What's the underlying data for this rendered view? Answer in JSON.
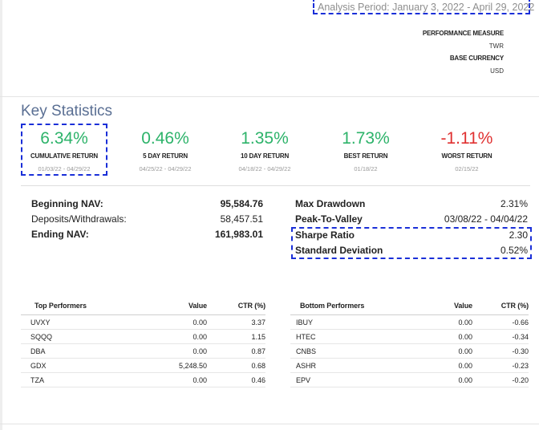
{
  "analysis_period": "Analysis Period: January 3, 2022 - April 29, 2022",
  "meta": {
    "performance_measure_label": "PERFORMANCE MEASURE",
    "performance_measure_value": "TWR",
    "base_currency_label": "BASE CURRENCY",
    "base_currency_value": "USD"
  },
  "key_statistics": {
    "title": "Key Statistics",
    "stats": [
      {
        "value": "6.34%",
        "label": "CUMULATIVE RETURN",
        "dates": "01/03/22 - 04/29/22"
      },
      {
        "value": "0.46%",
        "label": "5 DAY RETURN",
        "dates": "04/25/22 - 04/29/22"
      },
      {
        "value": "1.35%",
        "label": "10 DAY RETURN",
        "dates": "04/18/22 - 04/29/22"
      },
      {
        "value": "1.73%",
        "label": "BEST RETURN",
        "dates": "01/18/22"
      },
      {
        "value": "-1.11%",
        "label": "WORST RETURN",
        "dates": "02/15/22"
      }
    ]
  },
  "nav": [
    {
      "label": "Beginning NAV:",
      "value": "95,584.76"
    },
    {
      "label": "Deposits/Withdrawals:",
      "value": "58,457.51"
    },
    {
      "label": "Ending NAV:",
      "value": "161,983.01"
    }
  ],
  "risk": [
    {
      "label": "Max Drawdown",
      "value": "2.31%"
    },
    {
      "label": "Peak-To-Valley",
      "value": "03/08/22 - 04/04/22"
    },
    {
      "label": "Sharpe Ratio",
      "value": "2.30"
    },
    {
      "label": "Standard Deviation",
      "value": "0.52%"
    }
  ],
  "top_performers": {
    "headers": [
      "Top Performers",
      "Value",
      "CTR (%)"
    ],
    "rows": [
      [
        "UVXY",
        "0.00",
        "3.37"
      ],
      [
        "SQQQ",
        "0.00",
        "1.15"
      ],
      [
        "DBA",
        "0.00",
        "0.87"
      ],
      [
        "GDX",
        "5,248.50",
        "0.68"
      ],
      [
        "TZA",
        "0.00",
        "0.46"
      ]
    ]
  },
  "bottom_performers": {
    "headers": [
      "Bottom Performers",
      "Value",
      "CTR (%)"
    ],
    "rows": [
      [
        "IBUY",
        "0.00",
        "-0.66"
      ],
      [
        "HTEC",
        "0.00",
        "-0.34"
      ],
      [
        "CNBS",
        "0.00",
        "-0.30"
      ],
      [
        "ASHR",
        "0.00",
        "-0.23"
      ],
      [
        "EPV",
        "0.00",
        "-0.20"
      ]
    ]
  },
  "colors": {
    "positive": "#2db36a",
    "negative": "#e03131",
    "title": "#5a6f93",
    "highlight": "#1a2fd8"
  }
}
